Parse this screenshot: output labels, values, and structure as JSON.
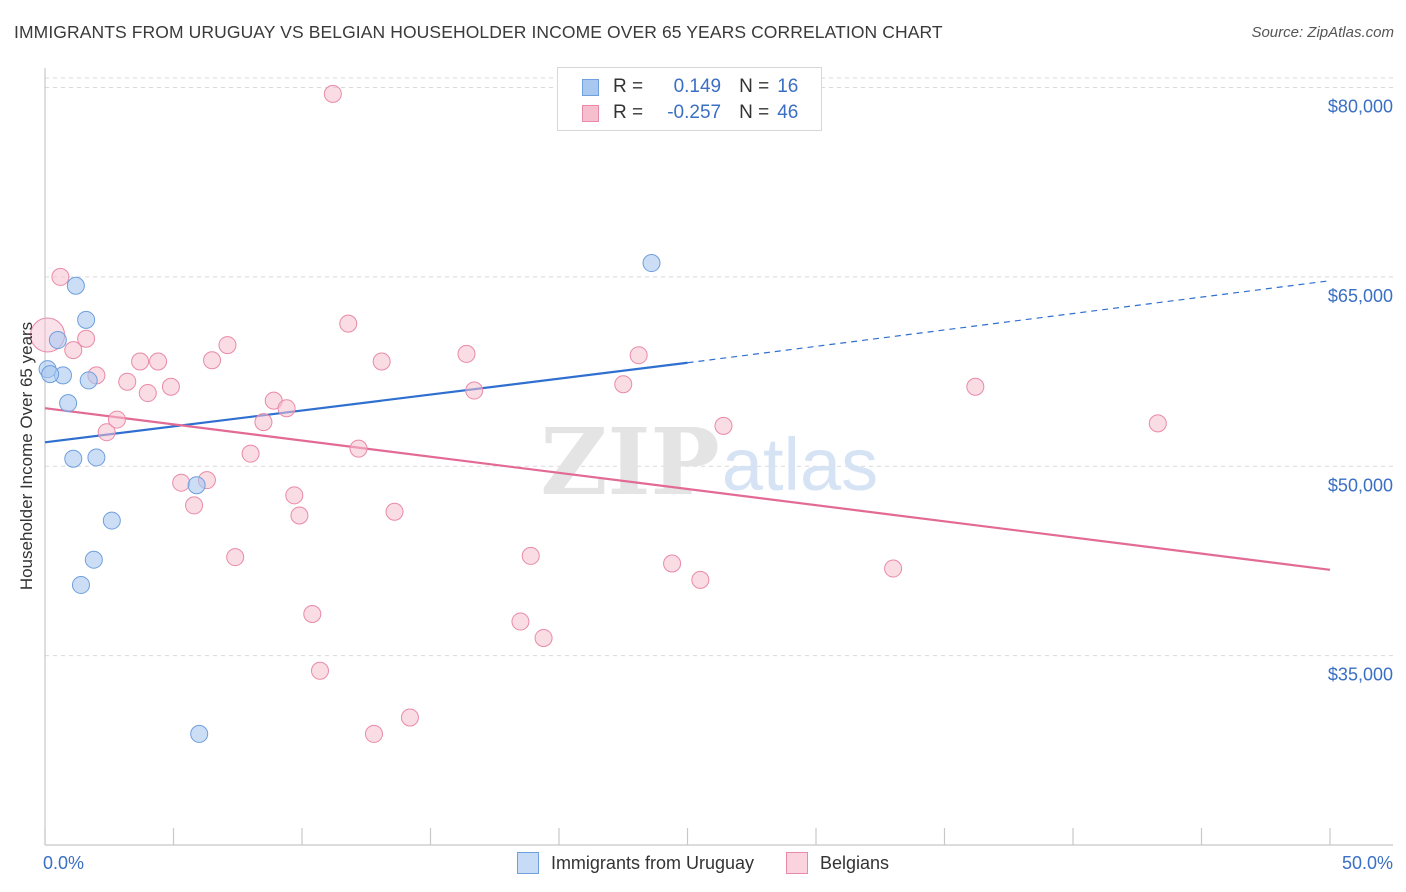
{
  "header": {
    "title": "IMMIGRANTS FROM URUGUAY VS BELGIAN HOUSEHOLDER INCOME OVER 65 YEARS CORRELATION CHART",
    "source": "Source: ZipAtlas.com"
  },
  "legend_top": {
    "rows": [
      {
        "r_label": "R =",
        "r_value": "0.149",
        "n_label": "N =",
        "n_value": "16"
      },
      {
        "r_label": "R =",
        "r_value": "-0.257",
        "n_label": "N =",
        "n_value": "46"
      }
    ]
  },
  "legend_bottom": {
    "items": [
      {
        "label": "Immigrants from Uruguay"
      },
      {
        "label": "Belgians"
      }
    ]
  },
  "watermark": {
    "zip": "ZIP",
    "atlas": "atlas"
  },
  "colors": {
    "blue_fill": "#a8c8f0",
    "blue_stroke": "#6f9fdc",
    "blue_line": "#2f6fd0",
    "pink_fill": "#f6bfd0",
    "pink_stroke": "#e98aa8",
    "pink_line": "#e26a95",
    "grid": "#d9d9d9",
    "axis_text": "#3a6fc4"
  },
  "chart_data": {
    "type": "scatter",
    "title": "IMMIGRANTS FROM URUGUAY VS BELGIAN HOUSEHOLDER INCOME OVER 65 YEARS CORRELATION CHART",
    "xlabel": "",
    "ylabel": "Householder Income Over 65 years",
    "xlim": [
      0,
      50
    ],
    "ylim": [
      20000,
      82500
    ],
    "x_tick_labels": [
      "0.0%",
      "50.0%"
    ],
    "y_ticks": [
      35000,
      50000,
      65000,
      80000
    ],
    "y_tick_labels": [
      "$35,000",
      "$50,000",
      "$65,000",
      "$80,000"
    ],
    "grid": "horizontal-dashed",
    "series": [
      {
        "name": "Immigrants from Uruguay",
        "color": "blue",
        "R": 0.149,
        "N": 16,
        "points": [
          [
            0.1,
            57700
          ],
          [
            0.5,
            60000
          ],
          [
            0.7,
            57200
          ],
          [
            0.9,
            55000
          ],
          [
            1.1,
            50600
          ],
          [
            1.2,
            64300
          ],
          [
            1.6,
            61600
          ],
          [
            1.7,
            56800
          ],
          [
            2.0,
            50700
          ],
          [
            2.6,
            45700
          ],
          [
            1.9,
            42600
          ],
          [
            1.4,
            40600
          ],
          [
            5.9,
            48500
          ],
          [
            6.0,
            28800
          ],
          [
            23.6,
            66100
          ],
          [
            0.2,
            57300
          ]
        ],
        "trend": {
          "x0": 0,
          "y0": 51900,
          "x1": 25,
          "y1": 58200,
          "dash_x1": 50,
          "dash_y1": 64700
        }
      },
      {
        "name": "Belgians",
        "color": "pink",
        "R": -0.257,
        "N": 46,
        "points": [
          [
            0.1,
            60400
          ],
          [
            0.6,
            65000
          ],
          [
            1.1,
            59200
          ],
          [
            1.6,
            60100
          ],
          [
            2.0,
            57200
          ],
          [
            2.4,
            52700
          ],
          [
            2.8,
            53700
          ],
          [
            3.2,
            56700
          ],
          [
            3.7,
            58300
          ],
          [
            4.0,
            55800
          ],
          [
            4.4,
            58300
          ],
          [
            4.9,
            56300
          ],
          [
            5.3,
            48700
          ],
          [
            5.8,
            46900
          ],
          [
            6.3,
            48900
          ],
          [
            6.5,
            58400
          ],
          [
            7.1,
            59600
          ],
          [
            7.4,
            42800
          ],
          [
            8.0,
            51000
          ],
          [
            8.5,
            53500
          ],
          [
            8.9,
            55200
          ],
          [
            9.4,
            54600
          ],
          [
            9.7,
            47700
          ],
          [
            9.9,
            46100
          ],
          [
            10.4,
            38300
          ],
          [
            10.7,
            33800
          ],
          [
            11.2,
            79500
          ],
          [
            11.8,
            61300
          ],
          [
            12.2,
            51400
          ],
          [
            12.8,
            28800
          ],
          [
            13.1,
            58300
          ],
          [
            13.6,
            46400
          ],
          [
            14.2,
            30100
          ],
          [
            16.4,
            58900
          ],
          [
            16.7,
            56000
          ],
          [
            18.5,
            37700
          ],
          [
            18.9,
            42900
          ],
          [
            19.4,
            36400
          ],
          [
            22.5,
            56500
          ],
          [
            23.1,
            58800
          ],
          [
            24.4,
            42300
          ],
          [
            25.5,
            41000
          ],
          [
            26.4,
            53200
          ],
          [
            33.0,
            41900
          ],
          [
            36.2,
            56300
          ],
          [
            43.3,
            53400
          ]
        ],
        "trend": {
          "x0": 0,
          "y0": 54600,
          "x1": 50,
          "y1": 41800
        }
      }
    ]
  }
}
